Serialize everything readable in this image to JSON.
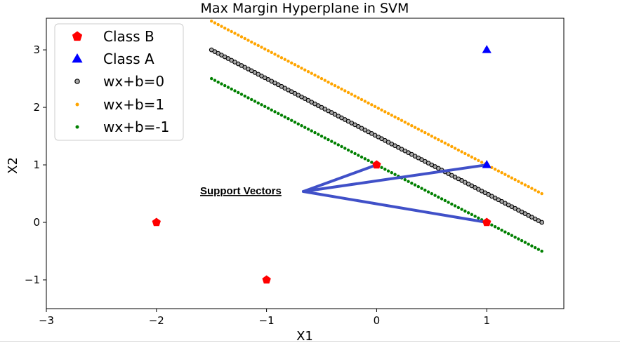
{
  "chart_data": {
    "type": "scatter",
    "title": "Max Margin Hyperplane in SVM",
    "xlabel": "X1",
    "ylabel": "X2",
    "xlim": [
      -3,
      1.7
    ],
    "ylim": [
      -1.5,
      3.55
    ],
    "xticks": [
      -3,
      -2,
      -1,
      0,
      1
    ],
    "xtick_labels": [
      "−3",
      "−2",
      "−1",
      "0",
      "1"
    ],
    "yticks": [
      -1,
      0,
      1,
      2,
      3
    ],
    "ytick_labels": [
      "−1",
      "0",
      "1",
      "2",
      "3"
    ],
    "grid": false,
    "legend_position": "top-left",
    "series": [
      {
        "name": "Class B",
        "kind": "points",
        "marker": "pentagon",
        "color": "#ff0000",
        "x": [
          -2,
          -1,
          0,
          1
        ],
        "y": [
          0,
          -1,
          1,
          0
        ]
      },
      {
        "name": "Class A",
        "kind": "points",
        "marker": "triangle",
        "color": "#0000ff",
        "x": [
          1,
          1
        ],
        "y": [
          3,
          1
        ]
      },
      {
        "name": "wx+b=0",
        "kind": "line-dots",
        "marker": "circle-open",
        "color": "#000000",
        "fill": "#aaaaaa",
        "x": [
          -1.5,
          1.5
        ],
        "y": [
          3.0,
          0.0
        ]
      },
      {
        "name": "wx+b=1",
        "kind": "line-dots",
        "marker": "dot",
        "color": "#ffa500",
        "x": [
          -1.5,
          1.5
        ],
        "y": [
          3.5,
          0.5
        ]
      },
      {
        "name": "wx+b=-1",
        "kind": "line-dots",
        "marker": "dot",
        "color": "#008000",
        "x": [
          -1.5,
          1.5
        ],
        "y": [
          2.5,
          -0.5
        ]
      }
    ],
    "annotation": {
      "text": "Support Vectors",
      "color": "#4050c8",
      "targets": [
        {
          "x": 0,
          "y": 1
        },
        {
          "x": 1,
          "y": 1
        },
        {
          "x": 1,
          "y": 0
        }
      ]
    }
  }
}
